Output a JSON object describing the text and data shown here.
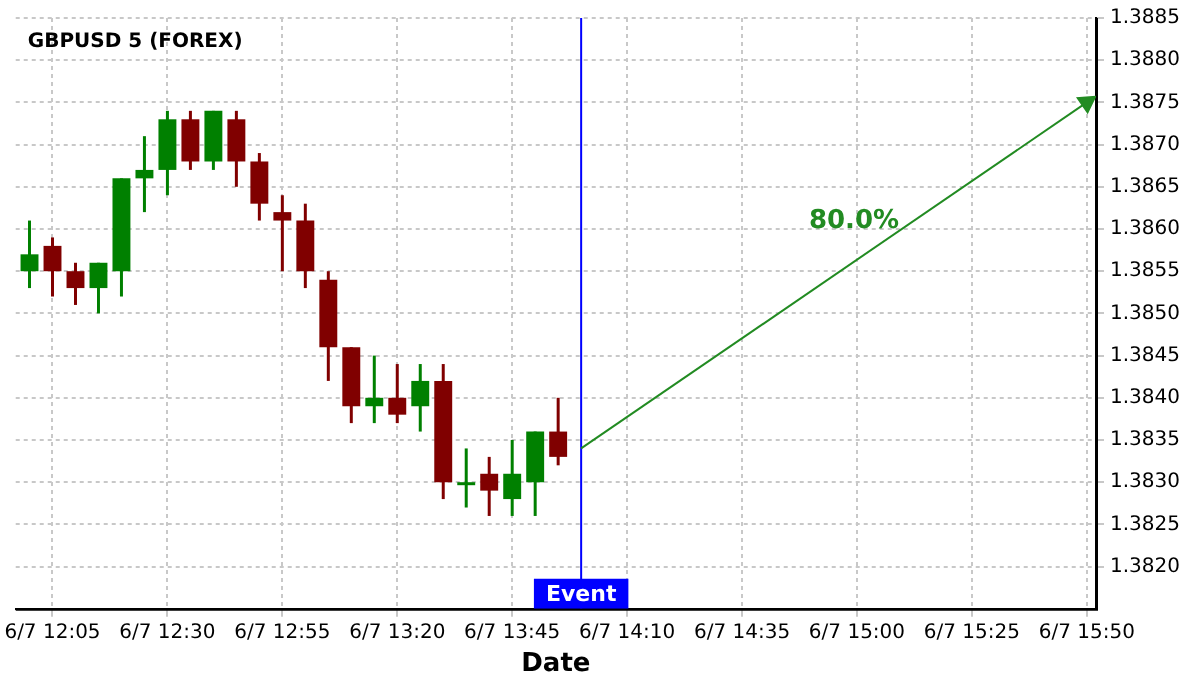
{
  "chart_data": {
    "type": "candlestick",
    "title": "GBPUSD 5 (FOREX)",
    "xlabel": "Date",
    "x": [
      "--06-07T12:00",
      "--06-07T12:05",
      "--06-07T12:10",
      "--06-07T12:15",
      "--06-07T12:20",
      "--06-07T12:25",
      "--06-07T12:30",
      "--06-07T12:35",
      "--06-07T12:40",
      "--06-07T12:45",
      "--06-07T12:50",
      "--06-07T12:55",
      "--06-07T13:00",
      "--06-07T13:05",
      "--06-07T13:10",
      "--06-07T13:15",
      "--06-07T13:20",
      "--06-07T13:25",
      "--06-07T13:30",
      "--06-07T13:35",
      "--06-07T13:40",
      "--06-07T13:45",
      "--06-07T13:50",
      "--06-07T13:55"
    ],
    "ohlc": [
      [
        1.3855,
        1.3861,
        1.3853,
        1.3857
      ],
      [
        1.3858,
        1.3859,
        1.3852,
        1.3855
      ],
      [
        1.3855,
        1.3856,
        1.3851,
        1.3853
      ],
      [
        1.3853,
        1.3856,
        1.385,
        1.3856
      ],
      [
        1.3855,
        1.3866,
        1.3852,
        1.3866
      ],
      [
        1.3866,
        1.3871,
        1.3862,
        1.3867
      ],
      [
        1.3867,
        1.3874,
        1.3864,
        1.3873
      ],
      [
        1.3873,
        1.3874,
        1.3867,
        1.3868
      ],
      [
        1.3868,
        1.3874,
        1.3867,
        1.3874
      ],
      [
        1.3873,
        1.3874,
        1.3865,
        1.3868
      ],
      [
        1.3868,
        1.3869,
        1.3861,
        1.3863
      ],
      [
        1.3862,
        1.3864,
        1.3855,
        1.3861
      ],
      [
        1.3861,
        1.3863,
        1.3853,
        1.3855
      ],
      [
        1.3854,
        1.3855,
        1.3842,
        1.3846
      ],
      [
        1.3846,
        1.3846,
        1.3837,
        1.3839
      ],
      [
        1.3839,
        1.3845,
        1.3837,
        1.384
      ],
      [
        1.384,
        1.3844,
        1.3837,
        1.3838
      ],
      [
        1.3839,
        1.3844,
        1.3836,
        1.3842
      ],
      [
        1.3842,
        1.3844,
        1.3828,
        1.383
      ],
      [
        1.383,
        1.3834,
        1.3827,
        1.383
      ],
      [
        1.3831,
        1.3833,
        1.3826,
        1.3829
      ],
      [
        1.3828,
        1.3835,
        1.3826,
        1.3831
      ],
      [
        1.383,
        1.3836,
        1.3826,
        1.3836
      ],
      [
        1.3836,
        1.384,
        1.3832,
        1.3833
      ]
    ],
    "colors": [
      "#008000",
      "#800000",
      "#800000",
      "#008000",
      "#008000",
      "#008000",
      "#008000",
      "#800000",
      "#008000",
      "#800000",
      "#800000",
      "#800000",
      "#800000",
      "#800000",
      "#800000",
      "#008000",
      "#800000",
      "#008000",
      "#800000",
      "#008000",
      "#800000",
      "#008000",
      "#008000",
      "#800000"
    ],
    "series": [
      {
        "type": "line",
        "x": [
          "--06-07T14:00",
          "--06-07T15:50"
        ],
        "values": [
          1.3834,
          1.3875
        ],
        "color": "#228b22"
      }
    ],
    "annotations": [
      "80.0%"
    ],
    "ref_lines": [
      {
        "axis": "x",
        "value": "--06-07T14:00",
        "label": "Event",
        "color": "#0000ff"
      }
    ],
    "xlim": [
      "--06-07T11:57",
      "--06-07T15:52"
    ],
    "ylim": [
      1.3815,
      1.3885
    ],
    "xticks": [
      {
        "value": "--06-07T12:05",
        "label": "6/7 12:05"
      },
      {
        "value": "--06-07T12:30",
        "label": "6/7 12:30"
      },
      {
        "value": "--06-07T12:55",
        "label": "6/7 12:55"
      },
      {
        "value": "--06-07T13:20",
        "label": "6/7 13:20"
      },
      {
        "value": "--06-07T13:45",
        "label": "6/7 13:45"
      },
      {
        "value": "--06-07T14:10",
        "label": "6/7 14:10"
      },
      {
        "value": "--06-07T14:35",
        "label": "6/7 14:35"
      },
      {
        "value": "--06-07T15:00",
        "label": "6/7 15:00"
      },
      {
        "value": "--06-07T15:25",
        "label": "6/7 15:25"
      },
      {
        "value": "--06-07T15:50",
        "label": "6/7 15:50"
      }
    ],
    "yticks": [
      {
        "value": 1.382,
        "label": "1.3820"
      },
      1.3825,
      {
        "value": 1.383,
        "label": "1.3830"
      },
      1.3835,
      {
        "value": 1.384,
        "label": "1.3840"
      },
      1.3845,
      {
        "value": 1.385,
        "label": "1.3850"
      },
      1.3855,
      {
        "value": 1.386,
        "label": "1.3860"
      },
      1.3865,
      {
        "value": 1.387,
        "label": "1.3870"
      },
      1.3875,
      {
        "value": 1.388,
        "label": "1.3880"
      },
      1.3885
    ],
    "grid": true,
    "legend": false
  }
}
